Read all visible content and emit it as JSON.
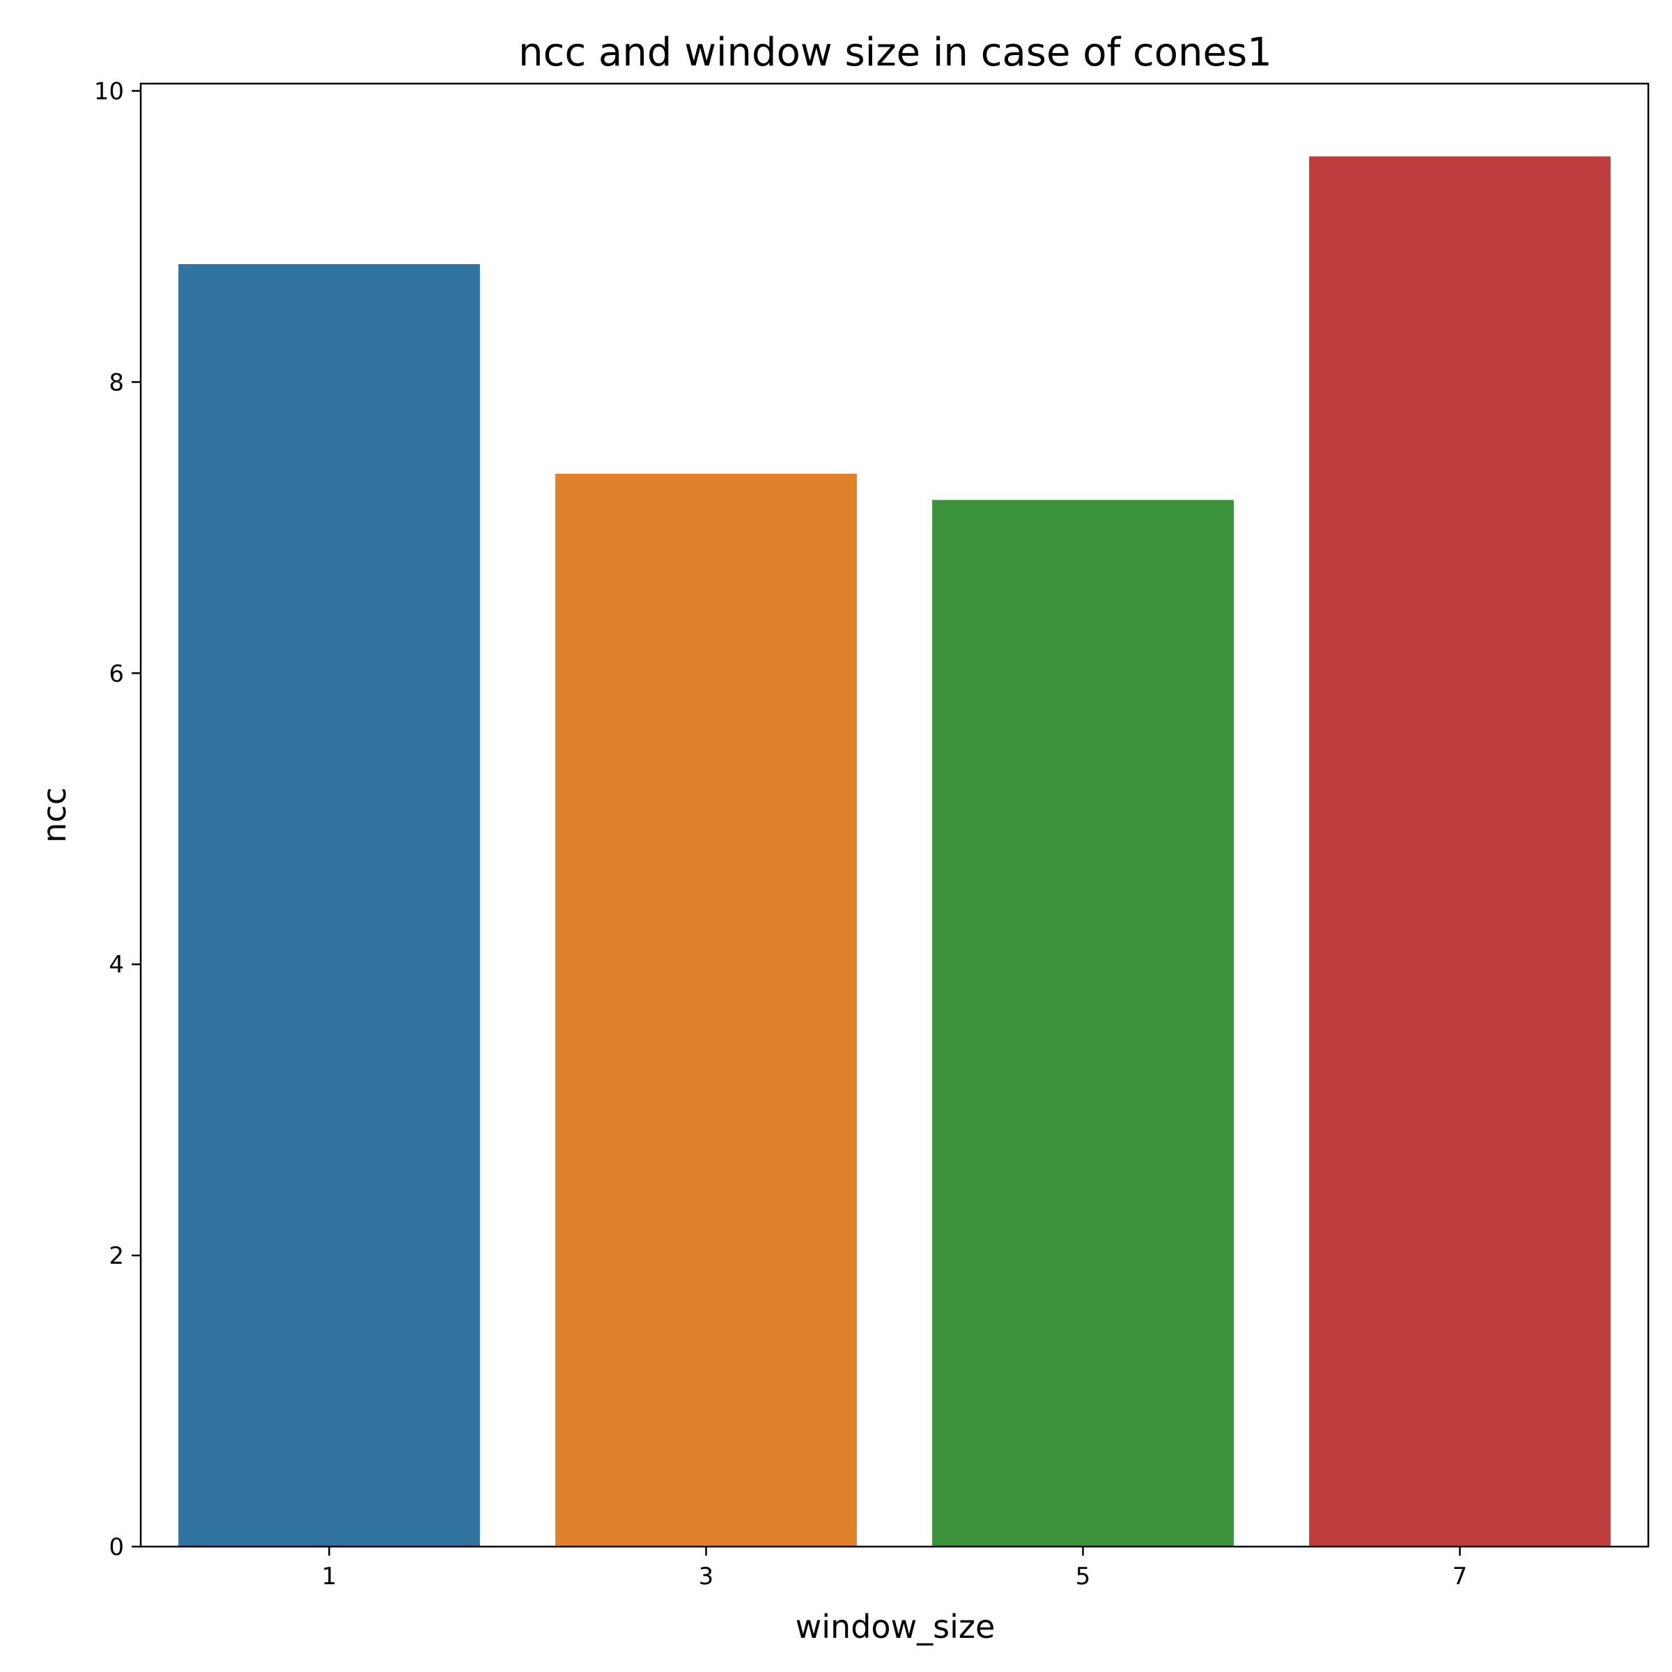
{
  "chart_data": {
    "type": "bar",
    "title": "ncc and window size in case of cones1",
    "xlabel": "window_size",
    "ylabel": "ncc",
    "categories": [
      "1",
      "3",
      "5",
      "7"
    ],
    "values": [
      8.81,
      7.37,
      7.19,
      9.55
    ],
    "colors": [
      "#3274a1",
      "#e1812c",
      "#3a923a",
      "#c03d3e"
    ],
    "ylim": [
      0,
      10.05
    ],
    "yticks": [
      0,
      2,
      4,
      6,
      8,
      10
    ],
    "grid": false,
    "legend": "none"
  }
}
